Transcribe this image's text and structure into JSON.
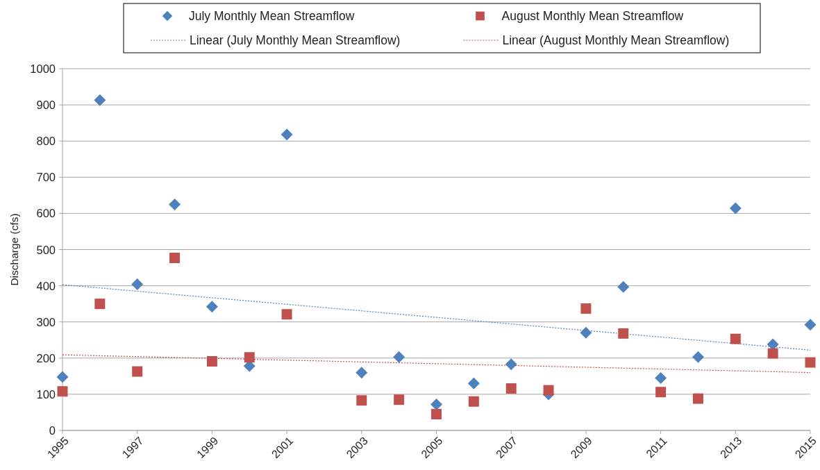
{
  "chart_data": {
    "type": "scatter",
    "ylabel": "Discharge (cfs)",
    "xlim": [
      1995,
      2015
    ],
    "xticks": [
      1995,
      1997,
      1999,
      2001,
      2003,
      2005,
      2007,
      2009,
      2011,
      2013,
      2015
    ],
    "ylim": [
      0,
      1000
    ],
    "yticks": [
      0,
      100,
      200,
      300,
      400,
      500,
      600,
      700,
      800,
      900,
      1000
    ],
    "grid": "y",
    "legend": "top",
    "series": [
      {
        "name": "July Monthly Mean Streamflow",
        "color": "#4f81bd",
        "marker": "diamond",
        "x": [
          1995,
          1996,
          1997,
          1998,
          1999,
          2000,
          2001,
          2003,
          2004,
          2005,
          2006,
          2007,
          2008,
          2009,
          2010,
          2011,
          2012,
          2013,
          2014,
          2015
        ],
        "values": [
          148,
          913,
          404,
          625,
          342,
          178,
          818,
          160,
          203,
          72,
          130,
          183,
          100,
          270,
          397,
          145,
          203,
          614,
          238,
          292
        ]
      },
      {
        "name": "August Monthly Mean Streamflow",
        "color": "#c0504d",
        "marker": "square",
        "x": [
          1995,
          1996,
          1997,
          1998,
          1999,
          2000,
          2001,
          2003,
          2004,
          2005,
          2006,
          2007,
          2008,
          2009,
          2010,
          2011,
          2012,
          2013,
          2014,
          2015
        ],
        "values": [
          108,
          350,
          163,
          477,
          191,
          202,
          321,
          83,
          85,
          45,
          80,
          116,
          111,
          337,
          268,
          106,
          88,
          253,
          213,
          188
        ]
      },
      {
        "name": "Linear (July Monthly Mean Streamflow)",
        "type": "line",
        "color": "#4f81bd",
        "marker": "none",
        "line_style": "dotted",
        "x": [
          1995,
          2015
        ],
        "values": [
          403,
          222
        ]
      },
      {
        "name": "Linear (August Monthly Mean Streamflow)",
        "type": "line",
        "color": "#c0504d",
        "marker": "none",
        "line_style": "dotted",
        "x": [
          1995,
          2015
        ],
        "values": [
          209,
          160
        ]
      }
    ]
  }
}
